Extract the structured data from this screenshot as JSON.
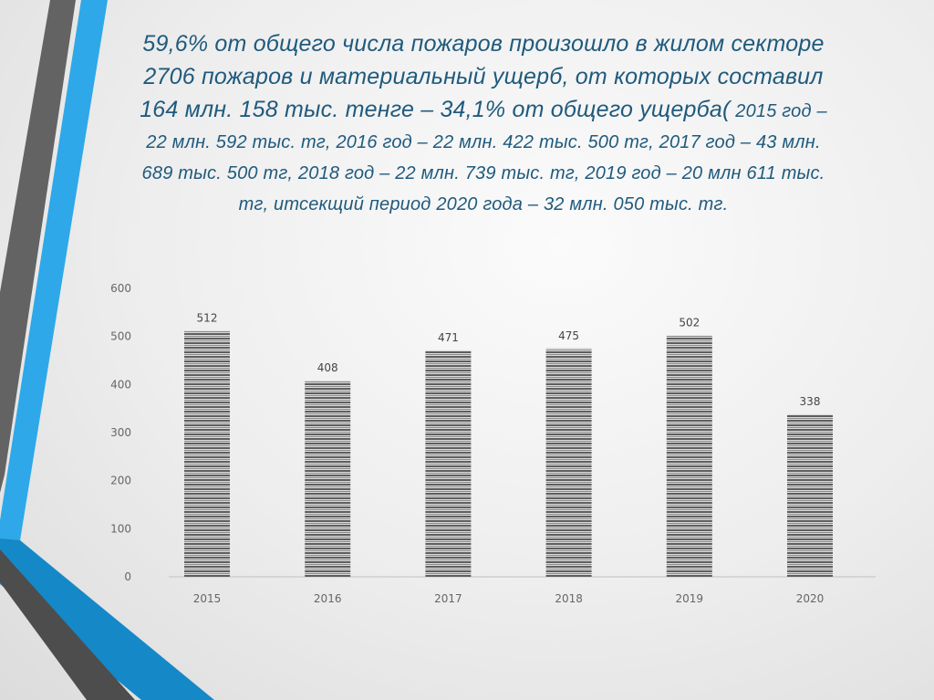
{
  "title": {
    "large": "59,6% от общего числа пожаров произошло в жилом секторе 2706 пожаров и материальный ущерб, от которых составил 164 млн. 158 тыс. тенге – 34,1% от общего ущерба(",
    "small": " 2015 год – 22 млн. 592 тыс. тг, 2016 год – 22 млн. 422 тыс. 500 тг, 2017 год – 43 млн. 689 тыс. 500 тг, 2018 год – 22 млн. 739 тыс. тг, 2019 год – 20 млн 611 тыс. тг, итсекщий период 2020 года – 32 млн. 050 тыс.  тг."
  },
  "colors": {
    "title": "#1f5a7d",
    "stripe_blue": "#2ea8e8",
    "stripe_blue_dark": "#1588c8",
    "stripe_gray": "#5a5a5a",
    "bar": "#707070"
  },
  "chart_data": {
    "type": "bar",
    "categories": [
      "2015",
      "2016",
      "2017",
      "2018",
      "2019",
      "2020"
    ],
    "values": [
      512,
      408,
      471,
      475,
      502,
      338
    ],
    "data_labels": [
      "512",
      "408",
      "471",
      "475",
      "502",
      "338"
    ],
    "yticks": [
      "0",
      "100",
      "200",
      "300",
      "400",
      "500",
      "600"
    ],
    "ylim": [
      0,
      600
    ],
    "grid": false,
    "bar_fill": "horizontal-stripes",
    "title": "",
    "xlabel": "",
    "ylabel": ""
  }
}
